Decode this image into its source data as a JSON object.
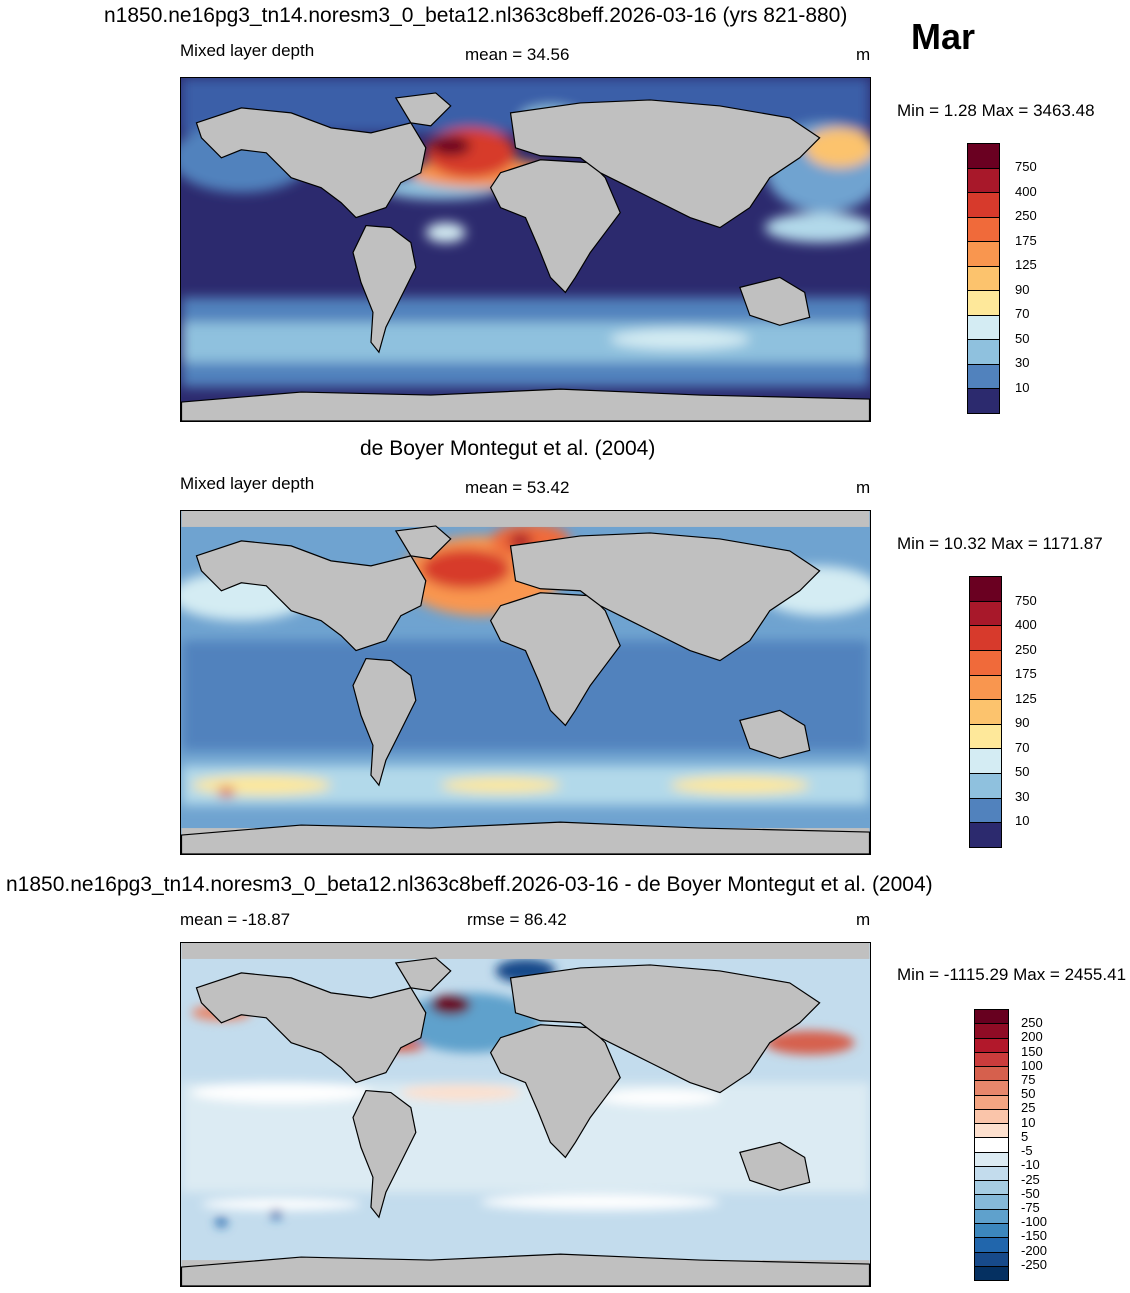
{
  "title_top": "n1850.ne16pg3_tn14.noresm3_0_beta12.nl363c8beff.2026-03-16 (yrs 821-880)",
  "month": "Mar",
  "panel1": {
    "left": "Mixed layer depth",
    "center": "mean =  34.56",
    "units": "m",
    "minmax": "Min =   1.28 Max = 3463.48",
    "colorbar_labels": [
      "750",
      "400",
      "250",
      "175",
      "125",
      "90",
      "70",
      "50",
      "30",
      "10"
    ]
  },
  "panel2_title": "de Boyer Montegut et al. (2004)",
  "panel2": {
    "left": "Mixed layer depth",
    "center": "mean =  53.42",
    "units": "m",
    "minmax": "Min =  10.32 Max = 1171.87",
    "colorbar_labels": [
      "750",
      "400",
      "250",
      "175",
      "125",
      "90",
      "70",
      "50",
      "30",
      "10"
    ]
  },
  "panel3_title": "n1850.ne16pg3_tn14.noresm3_0_beta12.nl363c8beff.2026-03-16 - de Boyer Montegut et al. (2004)",
  "panel3": {
    "left": "mean = -18.87",
    "center": "rmse =  86.42",
    "units": "m",
    "minmax": "Min = -1115.29 Max = 2455.41",
    "colorbar_labels": [
      "250",
      "200",
      "150",
      "100",
      "75",
      "50",
      "25",
      "10",
      "5",
      "-5",
      "-10",
      "-25",
      "-50",
      "-75",
      "-100",
      "-150",
      "-200",
      "-250"
    ]
  },
  "colors": {
    "seq": [
      "#6a0021",
      "#a8182a",
      "#d73a2c",
      "#f06a3a",
      "#f9964f",
      "#fcc36d",
      "#fee89a",
      "#eef7dc",
      "#d4ecf3",
      "#b2d9ea",
      "#8fc1de",
      "#6fa3d0",
      "#5182bd",
      "#3a5ea8",
      "#2c2a6e"
    ],
    "diff": [
      "#67001f",
      "#8f0c25",
      "#b2182b",
      "#cb3c3c",
      "#d6604d",
      "#e7876c",
      "#f4a582",
      "#fac5aa",
      "#fde0ce",
      "#ffffff",
      "#ffffff",
      "#dcebf3",
      "#c3dced",
      "#a6cde3",
      "#85b9d9",
      "#5fa1cc",
      "#3c87bd",
      "#2166ac",
      "#174a8a",
      "#053061"
    ],
    "land": "#c0c0c0"
  }
}
